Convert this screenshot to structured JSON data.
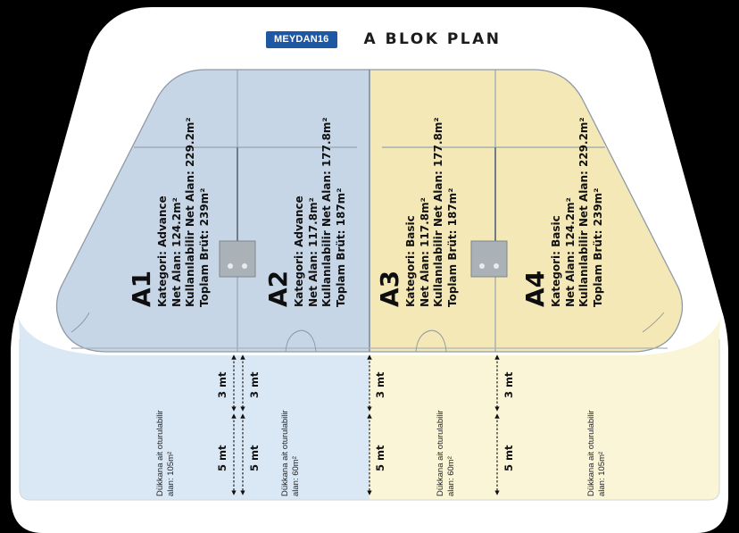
{
  "header": {
    "brand": "MEYDAN16",
    "title": "A BLOK PLAN"
  },
  "colors": {
    "advance": "#c7d6e7",
    "basic": "#f5e8b7",
    "terrace_advance": "#dae8f6",
    "terrace_basic": "#fbf5d8",
    "brand": "#1e58a4",
    "background": "#ffffff"
  },
  "units": [
    {
      "label": "A1",
      "category": "Kategori: Advance",
      "net": "Net Alan: 124.2m²",
      "usable": "Kullanılabilir Net Alan: 229.2m²",
      "gross": "Toplam Brüt: 239m²"
    },
    {
      "label": "A2",
      "category": "Kategori: Advance",
      "net": "Net Alan: 117.8m²",
      "usable": "Kullanılabilir Net Alan: 177.8m²",
      "gross": "Toplam Brüt: 187m²"
    },
    {
      "label": "A3",
      "category": "Kategori: Basic",
      "net": "Net Alan: 117.8m²",
      "usable": "Kullanılabilir Net Alan: 177.8m²",
      "gross": "Toplam Brüt: 187m²"
    },
    {
      "label": "A4",
      "category": "Kategori: Basic",
      "net": "Net Alan: 124.2m²",
      "usable": "Kullanılabilir Net Alan: 229.2m²",
      "gross": "Toplam Brüt: 239m²"
    }
  ],
  "terraces": [
    {
      "line1": "Dükkana ait oturulabilir",
      "line2": "alan: 105m²"
    },
    {
      "line1": "Dükkana ait oturulabilir",
      "line2": "alan: 60m²"
    },
    {
      "line1": "Dükkana ait oturulabilir",
      "line2": "alan: 60m²"
    },
    {
      "line1": "Dükkana ait oturulabilir",
      "line2": "alan: 105m²"
    }
  ],
  "dimensions": {
    "short": "3 mt",
    "long": "5 mt"
  }
}
